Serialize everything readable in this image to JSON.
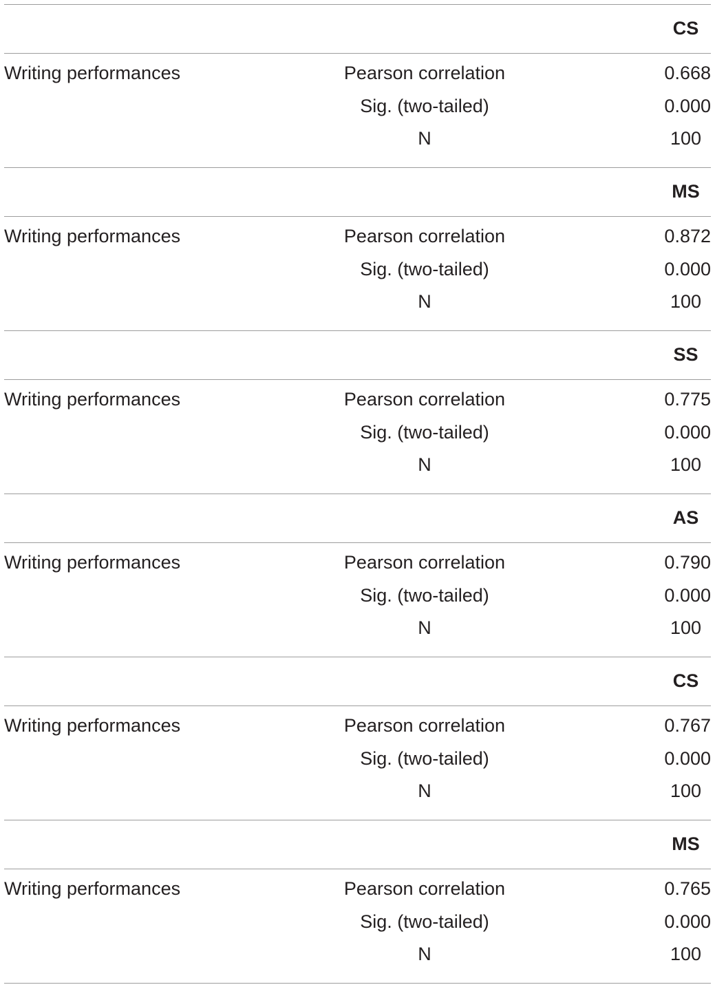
{
  "blocks": [
    {
      "header": "CS",
      "row_label": "Writing performances",
      "stats": [
        {
          "label": "Pearson correlation",
          "value": "0.668"
        },
        {
          "label": "Sig. (two-tailed)",
          "value": "0.000"
        },
        {
          "label": "N",
          "value": "100"
        }
      ]
    },
    {
      "header": "MS",
      "row_label": "Writing performances",
      "stats": [
        {
          "label": "Pearson correlation",
          "value": "0.872"
        },
        {
          "label": "Sig. (two-tailed)",
          "value": "0.000"
        },
        {
          "label": "N",
          "value": "100"
        }
      ]
    },
    {
      "header": "SS",
      "row_label": "Writing performances",
      "stats": [
        {
          "label": "Pearson correlation",
          "value": "0.775"
        },
        {
          "label": "Sig. (two-tailed)",
          "value": "0.000"
        },
        {
          "label": "N",
          "value": "100"
        }
      ]
    },
    {
      "header": "AS",
      "row_label": "Writing performances",
      "stats": [
        {
          "label": "Pearson correlation",
          "value": "0.790"
        },
        {
          "label": "Sig. (two-tailed)",
          "value": "0.000"
        },
        {
          "label": "N",
          "value": "100"
        }
      ]
    },
    {
      "header": "CS",
      "row_label": "Writing performances",
      "stats": [
        {
          "label": "Pearson correlation",
          "value": "0.767"
        },
        {
          "label": "Sig. (two-tailed)",
          "value": "0.000"
        },
        {
          "label": "N",
          "value": "100"
        }
      ]
    },
    {
      "header": "MS",
      "row_label": "Writing performances",
      "stats": [
        {
          "label": "Pearson correlation",
          "value": "0.765"
        },
        {
          "label": "Sig. (two-tailed)",
          "value": "0.000"
        },
        {
          "label": "N",
          "value": "100"
        }
      ]
    }
  ]
}
